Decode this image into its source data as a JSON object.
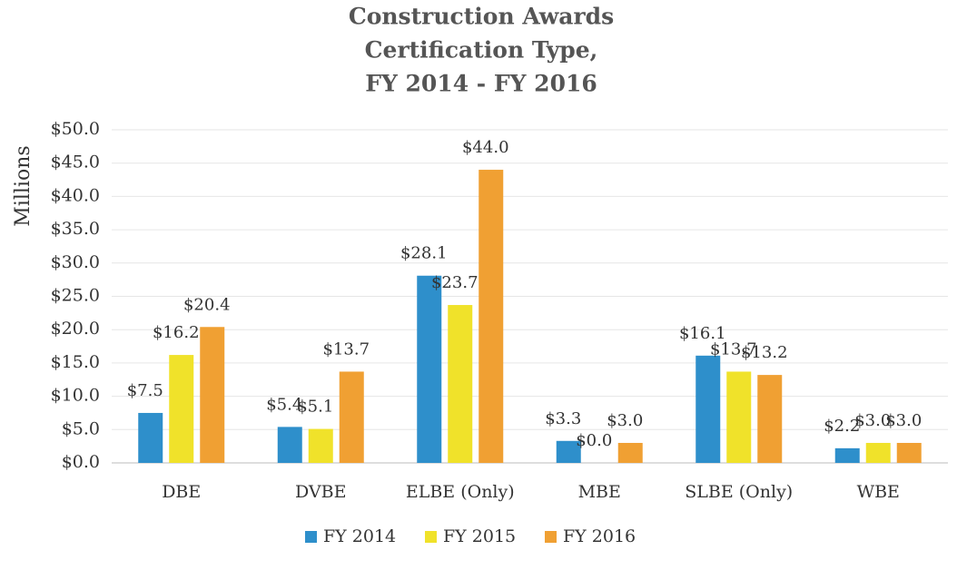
{
  "chart_data": {
    "type": "bar",
    "title": [
      "Construction Awards",
      "Certification Type,",
      "FY 2014 - FY 2016"
    ],
    "y_label": "Millions",
    "categories": [
      "DBE",
      "DVBE",
      "ELBE (Only)",
      "MBE",
      "SLBE (Only)",
      "WBE"
    ],
    "series": [
      {
        "name": "FY 2014",
        "color": "#2e8fcb",
        "values": [
          7.5,
          5.4,
          28.1,
          3.3,
          16.1,
          2.2
        ],
        "value_labels": [
          "$7.5",
          "$5.4",
          "$28.1",
          "$3.3",
          "$16.1",
          "$2.2"
        ]
      },
      {
        "name": "FY 2015",
        "color": "#f0e22a",
        "values": [
          16.2,
          5.1,
          23.7,
          0.0,
          13.7,
          3.0
        ],
        "value_labels": [
          "$16.2",
          "$5.1",
          "$23.7",
          "$0.0",
          "$13.7",
          "$3.0"
        ]
      },
      {
        "name": "FY 2016",
        "color": "#f0a033",
        "values": [
          20.4,
          13.7,
          44.0,
          3.0,
          13.2,
          3.0
        ],
        "value_labels": [
          "$20.4",
          "$13.7",
          "$44.0",
          "$3.0",
          "$13.2",
          "$3.0"
        ]
      }
    ],
    "ylim": [
      0,
      50
    ],
    "yticks": [
      {
        "value": 0,
        "label": "$0.0"
      },
      {
        "value": 5,
        "label": "$5.0"
      },
      {
        "value": 10,
        "label": "$10.0"
      },
      {
        "value": 15,
        "label": "$15.0"
      },
      {
        "value": 20,
        "label": "$20.0"
      },
      {
        "value": 25,
        "label": "$25.0"
      },
      {
        "value": 30,
        "label": "$30.0"
      },
      {
        "value": 35,
        "label": "$35.0"
      },
      {
        "value": 40,
        "label": "$40.0"
      },
      {
        "value": 45,
        "label": "$45.0"
      },
      {
        "value": 50,
        "label": "$50.0"
      }
    ],
    "grid": true,
    "legend": "bottom"
  }
}
